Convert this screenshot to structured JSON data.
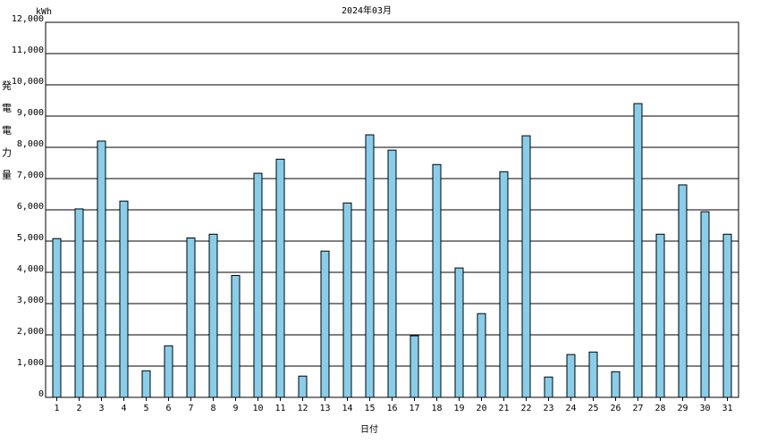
{
  "chart_data": {
    "type": "bar",
    "title": "2024年03月",
    "unit_label": "kWh",
    "y_label": "発電電力量",
    "x_label": "日付",
    "categories": [
      "1",
      "2",
      "3",
      "4",
      "5",
      "6",
      "7",
      "8",
      "9",
      "10",
      "11",
      "12",
      "13",
      "14",
      "15",
      "16",
      "17",
      "18",
      "19",
      "20",
      "21",
      "22",
      "23",
      "24",
      "25",
      "26",
      "27",
      "28",
      "29",
      "30",
      "31"
    ],
    "values": [
      5080,
      6030,
      8200,
      6280,
      850,
      1650,
      5100,
      5220,
      3900,
      7170,
      7620,
      680,
      4680,
      6220,
      8400,
      7910,
      1970,
      7450,
      4140,
      2680,
      7220,
      8370,
      650,
      1370,
      1450,
      820,
      9400,
      5220,
      6800,
      5940,
      5220
    ],
    "color": "#87ceeb",
    "ylim": [
      0,
      12000
    ],
    "yticks": [
      0,
      {
        "value": 1000,
        "label": "1,000"
      },
      {
        "value": 2000,
        "label": "2,000"
      },
      {
        "value": 3000,
        "label": "3,000"
      },
      {
        "value": 4000,
        "label": "4,000"
      },
      {
        "value": 5000,
        "label": "5,000"
      },
      {
        "value": 6000,
        "label": "6,000"
      },
      {
        "value": 7000,
        "label": "7,000"
      },
      {
        "value": 8000,
        "label": "8,000"
      },
      {
        "value": 9000,
        "label": "9,000"
      },
      {
        "value": 10000,
        "label": "10,000"
      },
      {
        "value": 11000,
        "label": "11,000"
      },
      {
        "value": 12000,
        "label": "12,000"
      }
    ],
    "grid": true
  }
}
